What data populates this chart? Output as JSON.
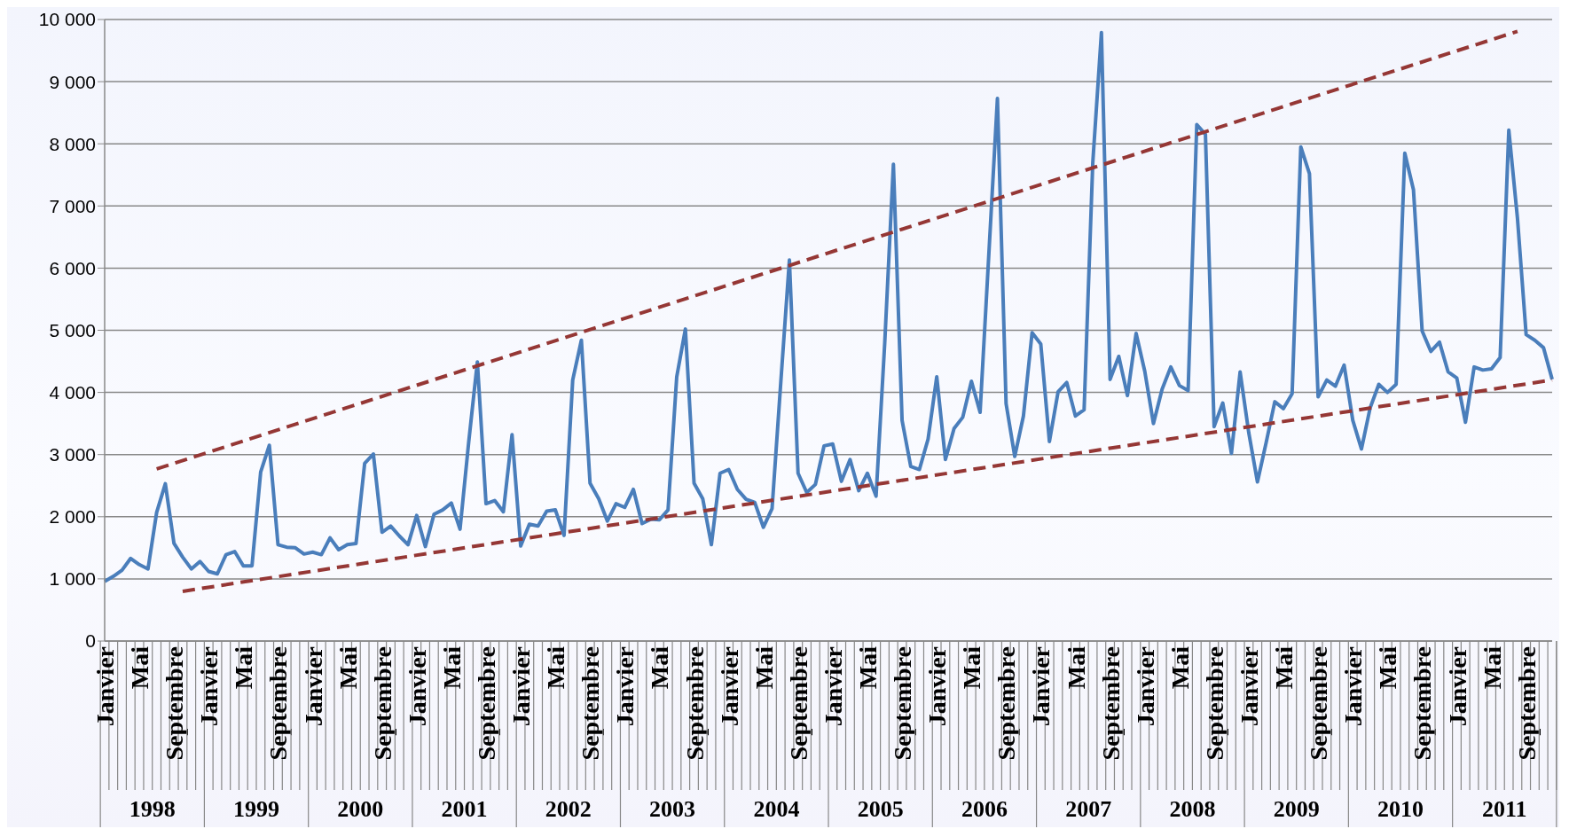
{
  "chart_data": {
    "type": "line",
    "categories": [
      "Janvier",
      null,
      null,
      null,
      "Mai",
      null,
      null,
      null,
      "Septembre",
      null,
      null,
      null,
      "Janvier",
      null,
      null,
      null,
      "Mai",
      null,
      null,
      null,
      "Septembre",
      null,
      null,
      null,
      "Janvier",
      null,
      null,
      null,
      "Mai",
      null,
      null,
      null,
      "Septembre",
      null,
      null,
      null,
      "Janvier",
      null,
      null,
      null,
      "Mai",
      null,
      null,
      null,
      "Septembre",
      null,
      null,
      null,
      "Janvier",
      null,
      null,
      null,
      "Mai",
      null,
      null,
      null,
      "Septembre",
      null,
      null,
      null,
      "Janvier",
      null,
      null,
      null,
      "Mai",
      null,
      null,
      null,
      "Septembre",
      null,
      null,
      null,
      "Janvier",
      null,
      null,
      null,
      "Mai",
      null,
      null,
      null,
      "Septembre",
      null,
      null,
      null,
      "Janvier",
      null,
      null,
      null,
      "Mai",
      null,
      null,
      null,
      "Septembre",
      null,
      null,
      null,
      "Janvier",
      null,
      null,
      null,
      "Mai",
      null,
      null,
      null,
      "Septembre",
      null,
      null,
      null,
      "Janvier",
      null,
      null,
      null,
      "Mai",
      null,
      null,
      null,
      "Septembre",
      null,
      null,
      null,
      "Janvier",
      null,
      null,
      null,
      "Mai",
      null,
      null,
      null,
      "Septembre",
      null,
      null,
      null,
      "Janvier",
      null,
      null,
      null,
      "Mai",
      null,
      null,
      null,
      "Septembre",
      null,
      null,
      null,
      "Janvier",
      null,
      null,
      null,
      "Mai",
      null,
      null,
      null,
      "Septembre",
      null,
      null,
      null,
      "Janvier",
      null,
      null,
      null,
      "Mai",
      null,
      null,
      null,
      "Septembre",
      null,
      null,
      null
    ],
    "series": [
      {
        "color": "#4a7ebb",
        "values": [
          960,
          1040,
          1140,
          1330,
          1230,
          1160,
          2070,
          2530,
          1570,
          1350,
          1160,
          1280,
          1120,
          1080,
          1390,
          1440,
          1210,
          1210,
          2720,
          3150,
          1550,
          1510,
          1500,
          1400,
          1430,
          1390,
          1660,
          1470,
          1550,
          1570,
          2860,
          3010,
          1750,
          1850,
          1690,
          1550,
          2020,
          1520,
          2040,
          2110,
          2220,
          1800,
          3200,
          4490,
          2210,
          2260,
          2080,
          3320,
          1530,
          1880,
          1850,
          2090,
          2110,
          1700,
          4200,
          4840,
          2540,
          2290,
          1930,
          2210,
          2150,
          2440,
          1890,
          1960,
          1950,
          2110,
          4250,
          5020,
          2540,
          2290,
          1550,
          2700,
          2760,
          2440,
          2280,
          2230,
          1830,
          2130,
          4150,
          6130,
          2700,
          2390,
          2520,
          3140,
          3170,
          2570,
          2920,
          2420,
          2700,
          2330,
          4800,
          7670,
          3550,
          2810,
          2760,
          3250,
          4250,
          2920,
          3420,
          3600,
          4180,
          3680,
          6200,
          8730,
          3820,
          2970,
          3620,
          4960,
          4780,
          3210,
          4010,
          4160,
          3620,
          3720,
          7690,
          9790,
          4210,
          4580,
          3950,
          4950,
          4340,
          3500,
          4050,
          4410,
          4110,
          4030,
          8310,
          8150,
          3450,
          3830,
          3020,
          4330,
          3350,
          2560,
          3190,
          3850,
          3740,
          3980,
          7950,
          7520,
          3930,
          4200,
          4100,
          4440,
          3550,
          3090,
          3750,
          4130,
          4000,
          4130,
          7850,
          7260,
          4990,
          4660,
          4810,
          4330,
          4230,
          3520,
          4410,
          4360,
          4380,
          4560,
          8220,
          6800,
          4930,
          4840,
          4720,
          4210
        ]
      },
      {
        "color": "#953735",
        "line_style": "dashed",
        "values": [
          null,
          null,
          null,
          null,
          null,
          null,
          2770,
          null,
          null,
          null,
          null,
          null,
          null,
          null,
          null,
          null,
          null,
          null,
          null,
          null,
          null,
          null,
          null,
          null,
          null,
          null,
          null,
          null,
          null,
          null,
          null,
          null,
          null,
          null,
          null,
          null,
          null,
          null,
          null,
          null,
          null,
          null,
          null,
          null,
          null,
          null,
          null,
          null,
          null,
          null,
          null,
          null,
          null,
          null,
          null,
          null,
          null,
          null,
          null,
          null,
          null,
          null,
          null,
          null,
          null,
          null,
          null,
          null,
          null,
          null,
          null,
          null,
          null,
          null,
          null,
          null,
          null,
          null,
          null,
          null,
          null,
          null,
          null,
          null,
          null,
          null,
          null,
          null,
          null,
          null,
          null,
          null,
          null,
          null,
          null,
          null,
          null,
          null,
          null,
          null,
          null,
          null,
          null,
          null,
          null,
          null,
          null,
          null,
          null,
          null,
          null,
          null,
          null,
          null,
          null,
          null,
          null,
          null,
          null,
          null,
          null,
          null,
          null,
          null,
          null,
          null,
          null,
          null,
          null,
          null,
          null,
          null,
          null,
          null,
          null,
          null,
          null,
          null,
          null,
          null,
          null,
          null,
          null,
          null,
          null,
          null,
          null,
          null,
          null,
          null,
          null,
          null,
          null,
          null,
          null,
          null,
          null,
          null,
          null,
          null,
          null,
          null,
          null,
          9810,
          null,
          null,
          null,
          null
        ]
      },
      {
        "color": "#953735",
        "line_style": "dashed",
        "values": [
          null,
          null,
          null,
          null,
          null,
          null,
          null,
          null,
          null,
          800,
          null,
          null,
          null,
          null,
          null,
          null,
          null,
          null,
          null,
          null,
          null,
          null,
          null,
          null,
          null,
          null,
          null,
          null,
          null,
          null,
          null,
          null,
          null,
          null,
          null,
          null,
          null,
          null,
          null,
          null,
          null,
          null,
          null,
          null,
          null,
          null,
          null,
          null,
          null,
          null,
          null,
          null,
          null,
          null,
          null,
          null,
          null,
          null,
          null,
          null,
          null,
          null,
          null,
          null,
          null,
          null,
          null,
          null,
          null,
          null,
          null,
          null,
          null,
          null,
          null,
          null,
          null,
          null,
          null,
          null,
          null,
          null,
          null,
          null,
          null,
          null,
          null,
          null,
          null,
          null,
          null,
          null,
          null,
          null,
          null,
          null,
          null,
          null,
          null,
          null,
          null,
          null,
          null,
          null,
          null,
          null,
          null,
          null,
          null,
          null,
          null,
          null,
          null,
          null,
          null,
          null,
          null,
          null,
          null,
          null,
          null,
          null,
          null,
          null,
          null,
          null,
          null,
          null,
          null,
          null,
          null,
          null,
          null,
          null,
          null,
          null,
          null,
          null,
          null,
          null,
          null,
          null,
          null,
          null,
          null,
          null,
          null,
          null,
          null,
          null,
          null,
          null,
          null,
          null,
          null,
          null,
          null,
          null,
          null,
          null,
          null,
          null,
          null,
          null,
          null,
          null,
          null,
          4200
        ]
      }
    ],
    "ylim": [
      0,
      10000
    ],
    "yticks": [
      0,
      {
        "value": 1000,
        "label": "1 000"
      },
      {
        "value": 2000,
        "label": "2 000"
      },
      {
        "value": 3000,
        "label": "3 000"
      },
      {
        "value": 4000,
        "label": "4 000"
      },
      {
        "value": 5000,
        "label": "5 000"
      },
      {
        "value": 6000,
        "label": "6 000"
      },
      {
        "value": 7000,
        "label": "7 000"
      },
      {
        "value": 8000,
        "label": "8 000"
      },
      {
        "value": 9000,
        "label": "9 000"
      },
      {
        "value": 10000,
        "label": "10 000"
      }
    ],
    "grid": "y",
    "marker": "none",
    "annotations": [
      "1998",
      "1999",
      "2000",
      "2001",
      "2002",
      "2003",
      "2004",
      "2005",
      "2006",
      "2007",
      "2008",
      "2009",
      "2010",
      "2011"
    ]
  }
}
